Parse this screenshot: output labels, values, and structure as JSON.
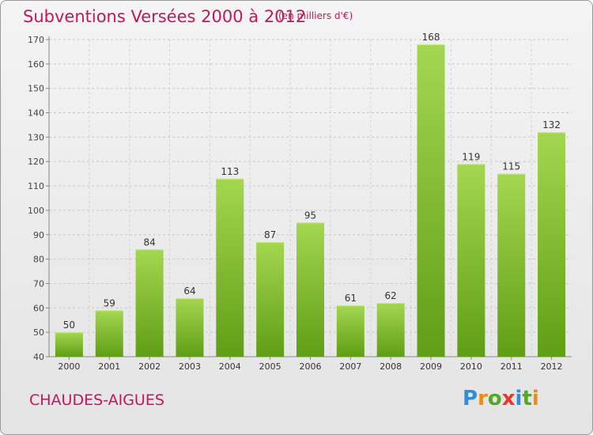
{
  "header": {
    "title": "Subventions Versées 2000 à 2012",
    "subtitle": "(en milliers d'€)"
  },
  "footer": {
    "commune": "CHAUDES-AIGUES",
    "logo": [
      "P",
      "r",
      "o",
      "x",
      "i",
      "t",
      "i"
    ],
    "logo_colors": [
      "#2e8fd6",
      "#f08a16",
      "#56a629",
      "#e8372c",
      "#2e8fd6",
      "#56a629",
      "#f08a16"
    ]
  },
  "colors": {
    "bar_light": "#a4d74f",
    "bar_dark": "#5f9e16",
    "title": "#c2185b"
  },
  "chart_data": {
    "type": "bar",
    "title": "Subventions Versées 2000 à 2012",
    "subtitle": "(en milliers d'€)",
    "xlabel": "",
    "ylabel": "",
    "categories": [
      "2000",
      "2001",
      "2002",
      "2003",
      "2004",
      "2005",
      "2006",
      "2007",
      "2008",
      "2009",
      "2010",
      "2011",
      "2012"
    ],
    "values": [
      50,
      59,
      84,
      64,
      113,
      87,
      95,
      61,
      62,
      168,
      119,
      115,
      132
    ],
    "ylim": [
      40,
      170
    ],
    "yticks": [
      40,
      50,
      60,
      70,
      80,
      90,
      100,
      110,
      120,
      130,
      140,
      150,
      160,
      170
    ],
    "grid": true,
    "legend": "none"
  }
}
